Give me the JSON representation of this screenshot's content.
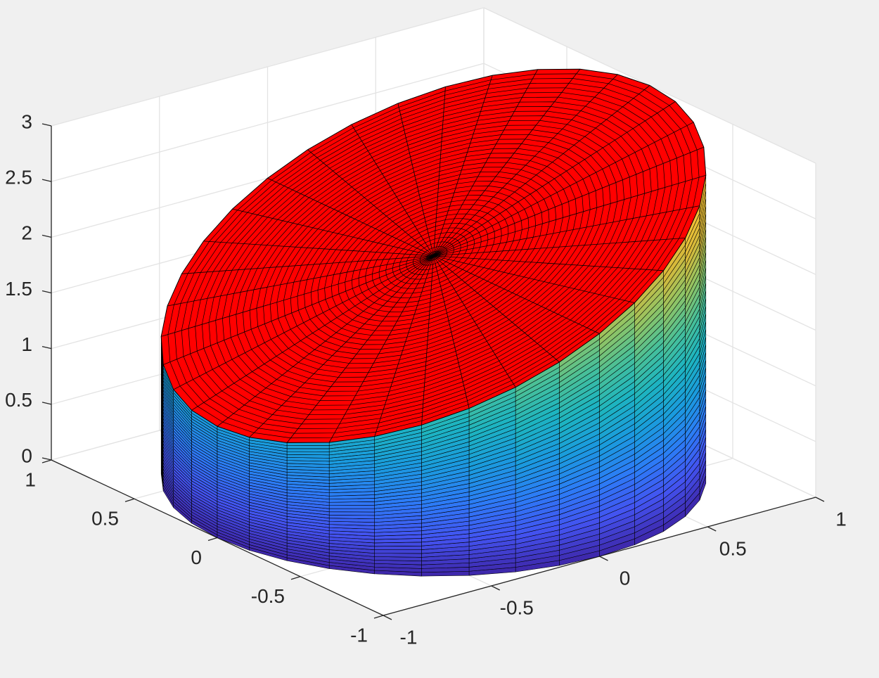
{
  "chart_data": {
    "type": "surface3d",
    "xlim": [
      -1,
      1
    ],
    "ylim": [
      -1,
      1
    ],
    "zlim": [
      0,
      3
    ],
    "xticks": [
      -1,
      -0.5,
      0,
      0.5,
      1
    ],
    "yticks": [
      -1,
      -0.5,
      0,
      0.5,
      1
    ],
    "zticks": [
      0,
      0.5,
      1,
      1.5,
      2,
      2.5,
      3
    ],
    "grid": true,
    "top_color": "#ff0000",
    "edge_color": "#000000",
    "colormap": [
      "#3e26a8",
      "#4353f0",
      "#2c7cf6",
      "#1a9bdd",
      "#1db4c0",
      "#49c098",
      "#93c463",
      "#d8b93a",
      "#fdc634",
      "#f9fb15"
    ],
    "rim": {
      "x": [
        1,
        0.985,
        0.94,
        0.866,
        0.766,
        0.643,
        0.5,
        0.342,
        0.174,
        0,
        -0.174,
        -0.342,
        -0.5,
        -0.643,
        -0.766,
        -0.866,
        -0.94,
        -0.985,
        -1,
        -0.985,
        -0.94,
        -0.866,
        -0.766,
        -0.643,
        -0.5,
        -0.342,
        -0.174,
        0,
        0.174,
        0.342,
        0.5,
        0.643,
        0.766,
        0.866,
        0.94,
        0.985
      ],
      "y": [
        0,
        0.174,
        0.342,
        0.5,
        0.643,
        0.766,
        0.866,
        0.94,
        0.985,
        1,
        0.985,
        0.94,
        0.866,
        0.766,
        0.643,
        0.5,
        0.342,
        0.174,
        0,
        -0.174,
        -0.342,
        -0.5,
        -0.643,
        -0.766,
        -0.866,
        -0.94,
        -0.985,
        -1,
        -0.985,
        -0.94,
        -0.866,
        -0.766,
        -0.643,
        -0.5,
        -0.342,
        -0.174
      ],
      "z": [
        3,
        2.985,
        2.94,
        2.866,
        2.766,
        2.643,
        2.5,
        2.342,
        2.174,
        2,
        1.826,
        1.658,
        1.5,
        1.357,
        1.234,
        1.134,
        1.06,
        1.015,
        1,
        1.015,
        1.06,
        1.134,
        1.234,
        1.357,
        1.5,
        1.658,
        1.826,
        2,
        2.174,
        2.342,
        2.5,
        2.643,
        2.766,
        2.866,
        2.94,
        2.985
      ]
    }
  }
}
